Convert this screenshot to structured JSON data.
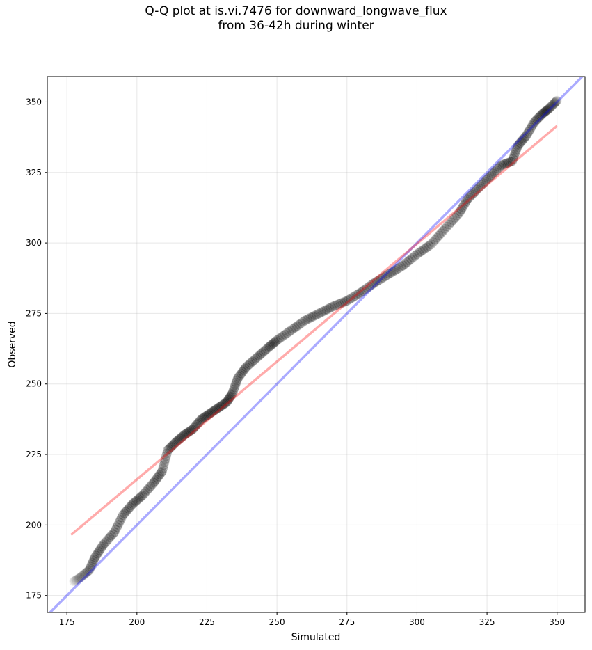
{
  "chart_data": {
    "type": "scatter",
    "title_lines": [
      "Q-Q plot at is.vi.7476 for downward_longwave_flux",
      "from 36-42h during winter"
    ],
    "xlabel": "Simulated",
    "ylabel": "Observed",
    "xlim": [
      168,
      360
    ],
    "ylim": [
      169,
      359
    ],
    "xticks": [
      175,
      200,
      225,
      250,
      275,
      300,
      325,
      350
    ],
    "yticks": [
      175,
      200,
      225,
      250,
      275,
      300,
      325,
      350
    ],
    "grid": true,
    "quantile_anchors": [
      [
        177.5,
        180.0
      ],
      [
        180.0,
        181.5
      ],
      [
        183.0,
        184.0
      ],
      [
        185.0,
        188.5
      ],
      [
        188.0,
        193.0
      ],
      [
        192.0,
        197.5
      ],
      [
        195.0,
        203.5
      ],
      [
        198.5,
        207.5
      ],
      [
        202.0,
        210.5
      ],
      [
        206.0,
        215.0
      ],
      [
        209.0,
        219.0
      ],
      [
        211.0,
        226.5
      ],
      [
        214.0,
        229.5
      ],
      [
        217.0,
        232.0
      ],
      [
        220.0,
        234.0
      ],
      [
        223.0,
        237.5
      ],
      [
        226.0,
        239.5
      ],
      [
        229.0,
        241.5
      ],
      [
        232.0,
        243.5
      ],
      [
        234.0,
        246.5
      ],
      [
        236.0,
        252.0
      ],
      [
        239.0,
        256.0
      ],
      [
        243.0,
        259.5
      ],
      [
        247.0,
        263.0
      ],
      [
        250.0,
        265.5
      ],
      [
        255.0,
        269.0
      ],
      [
        260.0,
        272.5
      ],
      [
        265.0,
        275.0
      ],
      [
        270.0,
        277.5
      ],
      [
        275.0,
        279.5
      ],
      [
        280.0,
        282.5
      ],
      [
        285.0,
        286.0
      ],
      [
        290.0,
        289.0
      ],
      [
        295.0,
        292.0
      ],
      [
        300.0,
        296.0
      ],
      [
        305.0,
        299.5
      ],
      [
        310.0,
        305.0
      ],
      [
        315.0,
        310.5
      ],
      [
        318.0,
        315.5
      ],
      [
        322.0,
        319.5
      ],
      [
        326.0,
        323.5
      ],
      [
        330.0,
        327.5
      ],
      [
        334.0,
        329.0
      ],
      [
        336.0,
        334.5
      ],
      [
        339.0,
        338.0
      ],
      [
        342.0,
        343.0
      ],
      [
        345.0,
        346.0
      ],
      [
        347.0,
        347.5
      ],
      [
        349.0,
        349.5
      ],
      [
        350.0,
        350.5
      ]
    ],
    "reference_line_1to1": {
      "x": [
        168,
        360
      ],
      "y": [
        168,
        360
      ],
      "color": "#0000ff",
      "opacity": 0.33
    },
    "fit_line": {
      "x": [
        176.5,
        350.0
      ],
      "y": [
        196.5,
        341.5
      ],
      "color": "#ff0000",
      "opacity": 0.33
    },
    "marker_color": "#000000"
  }
}
